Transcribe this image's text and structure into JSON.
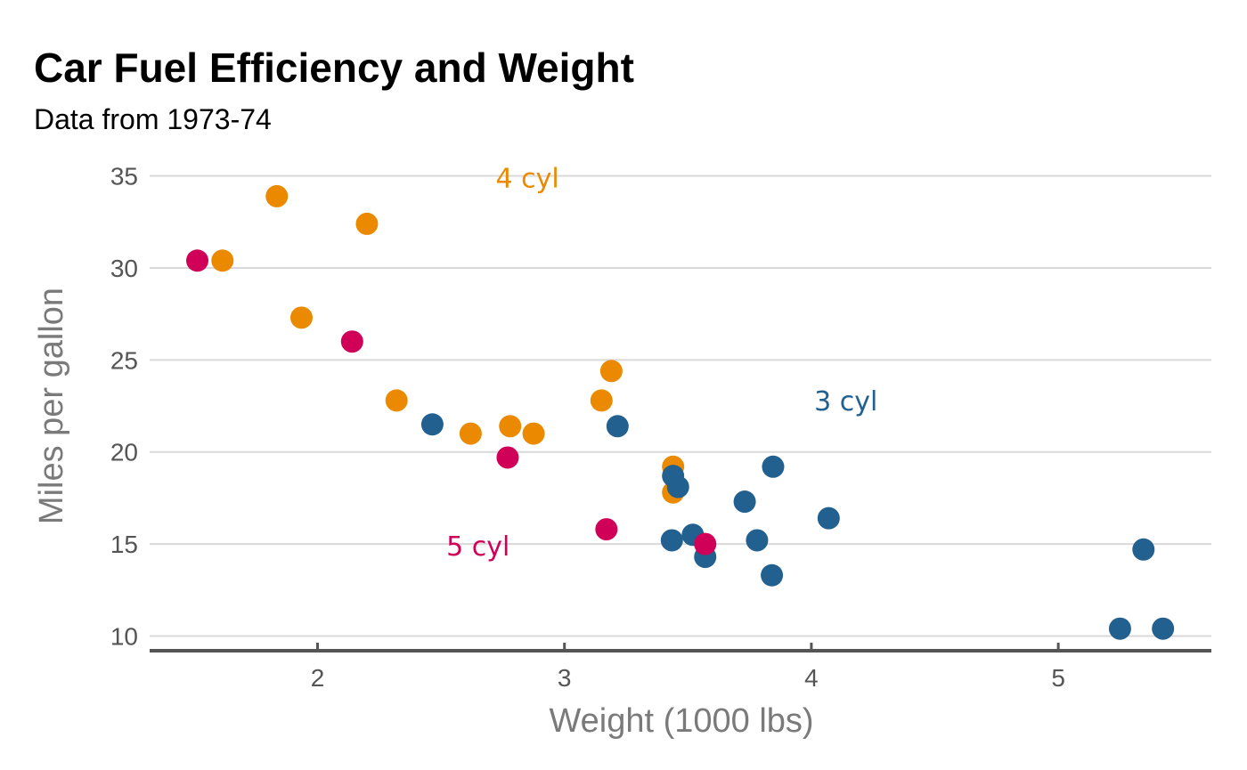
{
  "chart_data": {
    "type": "scatter",
    "title": "Car Fuel Efficiency and Weight",
    "subtitle": "Data from 1973-74",
    "xlabel": "Weight (1000 lbs)",
    "ylabel": "Miles per gallon",
    "xlim": [
      1.32,
      5.62
    ],
    "ylim": [
      9.2,
      36
    ],
    "xticks": [
      2,
      3,
      4,
      5
    ],
    "yticks": [
      10,
      15,
      20,
      25,
      30,
      35
    ],
    "grid": "horizontal",
    "colors": {
      "4 cyl": "#EB8A00",
      "3 cyl": "#22608F",
      "5 cyl": "#D00058"
    },
    "annotations": [
      {
        "text": "4 cyl",
        "x": 2.85,
        "y": 34.9,
        "group": "4 cyl"
      },
      {
        "text": "3 cyl",
        "x": 4.14,
        "y": 22.8,
        "group": "3 cyl"
      },
      {
        "text": "5 cyl",
        "x": 2.65,
        "y": 14.9,
        "group": "5 cyl"
      }
    ],
    "series": [
      {
        "name": "4 cyl",
        "points": [
          [
            1.835,
            33.9
          ],
          [
            2.2,
            32.4
          ],
          [
            1.615,
            30.4
          ],
          [
            1.935,
            27.3
          ],
          [
            2.32,
            22.8
          ],
          [
            3.19,
            24.4
          ],
          [
            3.15,
            22.8
          ],
          [
            2.62,
            21.0
          ],
          [
            2.78,
            21.4
          ],
          [
            2.875,
            21.0
          ],
          [
            3.44,
            19.2
          ],
          [
            3.44,
            17.8
          ]
        ]
      },
      {
        "name": "3 cyl",
        "points": [
          [
            2.465,
            21.5
          ],
          [
            3.215,
            21.4
          ],
          [
            3.44,
            18.7
          ],
          [
            3.46,
            18.1
          ],
          [
            3.57,
            14.3
          ],
          [
            3.73,
            17.3
          ],
          [
            3.78,
            15.2
          ],
          [
            4.07,
            16.4
          ],
          [
            3.52,
            15.5
          ],
          [
            3.435,
            15.2
          ],
          [
            3.84,
            13.3
          ],
          [
            3.845,
            19.2
          ],
          [
            5.25,
            10.4
          ],
          [
            5.424,
            10.4
          ],
          [
            5.345,
            14.7
          ]
        ]
      },
      {
        "name": "5 cyl",
        "points": [
          [
            1.513,
            30.4
          ],
          [
            2.14,
            26.0
          ],
          [
            2.77,
            19.7
          ],
          [
            3.17,
            15.8
          ],
          [
            3.57,
            15.0
          ]
        ]
      }
    ]
  }
}
